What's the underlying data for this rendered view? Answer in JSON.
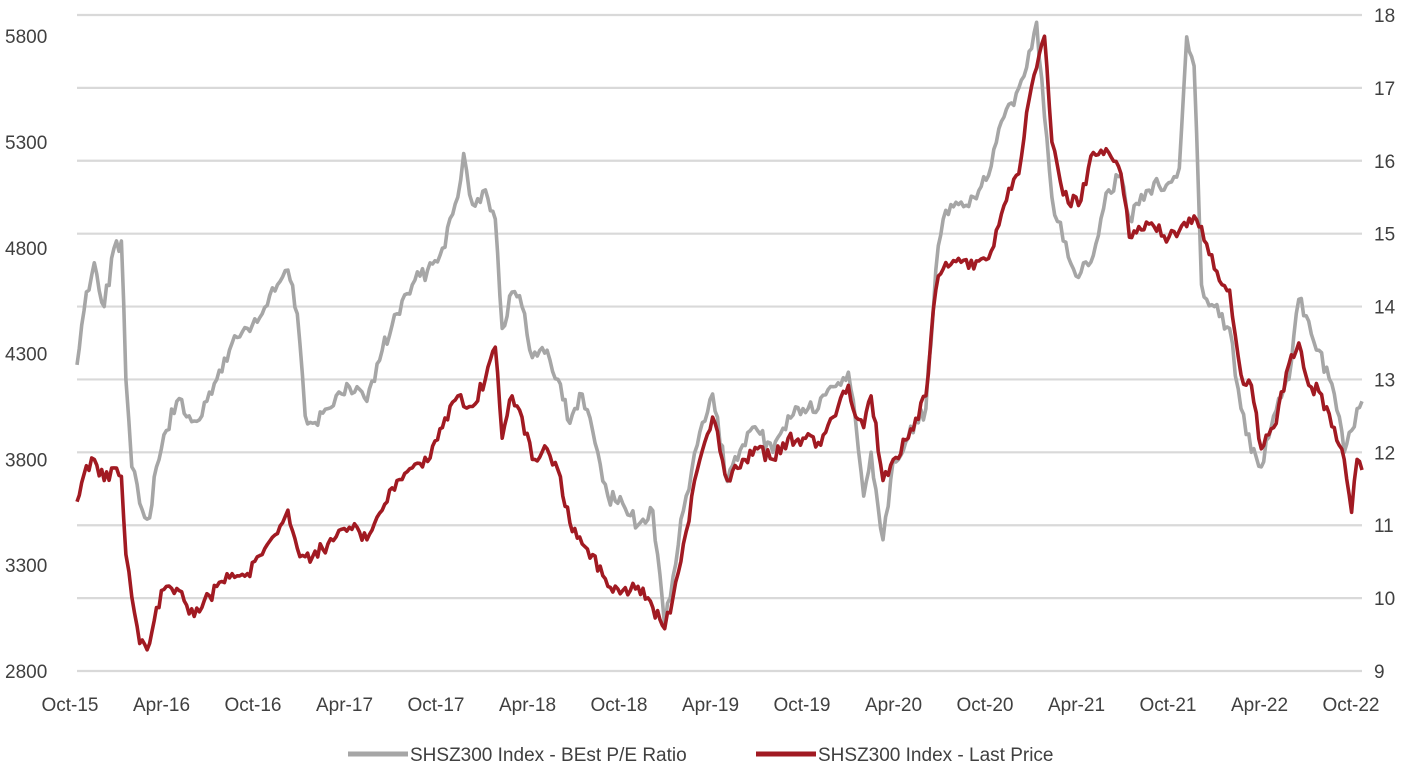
{
  "chart_data": {
    "type": "line",
    "title": "",
    "xlabel": "",
    "ylabel": "",
    "x_ticks": [
      "Oct-15",
      "Apr-16",
      "Oct-16",
      "Apr-17",
      "Oct-17",
      "Apr-18",
      "Oct-18",
      "Apr-19",
      "Oct-19",
      "Apr-20",
      "Oct-20",
      "Apr-21",
      "Oct-21",
      "Apr-22",
      "Oct-22"
    ],
    "x_range": [
      "2015-10-01",
      "2022-11-15"
    ],
    "y_left": {
      "ticks": [
        2800,
        3300,
        3800,
        4300,
        4800,
        5300,
        5800
      ],
      "range": [
        2800,
        5900
      ],
      "series": "SHSZ300 Index - Last Price"
    },
    "y_right": {
      "ticks": [
        9,
        10,
        11,
        12,
        13,
        14,
        15,
        16,
        17,
        18
      ],
      "range": [
        9,
        18
      ],
      "series": "SHSZ300 Index - BEst P/E Ratio"
    },
    "grid": true,
    "legend_position": "bottom",
    "colors": {
      "pe": "#a6a6a6",
      "price": "#a11a22",
      "grid": "#d9d9d9",
      "text": "#404040"
    },
    "series": [
      {
        "name": "SHSZ300 Index - BEst P/E Ratio",
        "axis": "right",
        "color": "#a6a6a6",
        "points": [
          [
            "2015-10-01",
            13.2
          ],
          [
            "2015-10-20",
            14.2
          ],
          [
            "2015-11-05",
            14.6
          ],
          [
            "2015-11-25",
            14.0
          ],
          [
            "2015-12-15",
            14.8
          ],
          [
            "2015-12-30",
            14.9
          ],
          [
            "2016-01-08",
            13.0
          ],
          [
            "2016-01-20",
            11.8
          ],
          [
            "2016-02-05",
            11.3
          ],
          [
            "2016-02-25",
            11.1
          ],
          [
            "2016-03-10",
            11.8
          ],
          [
            "2016-03-30",
            12.3
          ],
          [
            "2016-04-20",
            12.7
          ],
          [
            "2016-05-15",
            12.5
          ],
          [
            "2016-06-10",
            12.5
          ],
          [
            "2016-07-10",
            13.0
          ],
          [
            "2016-08-10",
            13.5
          ],
          [
            "2016-09-10",
            13.7
          ],
          [
            "2016-10-10",
            13.9
          ],
          [
            "2016-11-10",
            14.3
          ],
          [
            "2016-12-01",
            14.5
          ],
          [
            "2016-12-20",
            13.9
          ],
          [
            "2017-01-05",
            12.5
          ],
          [
            "2017-01-20",
            12.4
          ],
          [
            "2017-02-20",
            12.6
          ],
          [
            "2017-03-20",
            12.8
          ],
          [
            "2017-04-20",
            12.9
          ],
          [
            "2017-05-10",
            12.7
          ],
          [
            "2017-06-10",
            13.4
          ],
          [
            "2017-07-10",
            13.9
          ],
          [
            "2017-08-10",
            14.3
          ],
          [
            "2017-09-10",
            14.5
          ],
          [
            "2017-10-10",
            14.8
          ],
          [
            "2017-11-10",
            15.5
          ],
          [
            "2017-11-22",
            16.1
          ],
          [
            "2017-12-10",
            15.4
          ],
          [
            "2018-01-05",
            15.6
          ],
          [
            "2018-01-25",
            15.2
          ],
          [
            "2018-02-08",
            13.7
          ],
          [
            "2018-02-28",
            14.2
          ],
          [
            "2018-03-20",
            14.0
          ],
          [
            "2018-04-10",
            13.3
          ],
          [
            "2018-05-10",
            13.4
          ],
          [
            "2018-06-01",
            13.0
          ],
          [
            "2018-06-25",
            12.4
          ],
          [
            "2018-07-20",
            12.8
          ],
          [
            "2018-08-10",
            12.3
          ],
          [
            "2018-09-10",
            11.4
          ],
          [
            "2018-10-10",
            11.3
          ],
          [
            "2018-11-10",
            11.0
          ],
          [
            "2018-12-10",
            11.2
          ],
          [
            "2019-01-03",
            9.6
          ],
          [
            "2019-01-20",
            10.3
          ],
          [
            "2019-02-10",
            11.2
          ],
          [
            "2019-03-10",
            12.1
          ],
          [
            "2019-04-10",
            12.8
          ],
          [
            "2019-05-10",
            11.6
          ],
          [
            "2019-06-10",
            12.1
          ],
          [
            "2019-07-10",
            12.3
          ],
          [
            "2019-08-10",
            12.0
          ],
          [
            "2019-09-10",
            12.5
          ],
          [
            "2019-10-10",
            12.6
          ],
          [
            "2019-11-10",
            12.6
          ],
          [
            "2019-12-10",
            12.9
          ],
          [
            "2020-01-10",
            13.1
          ],
          [
            "2020-01-25",
            12.4
          ],
          [
            "2020-02-10",
            11.4
          ],
          [
            "2020-02-25",
            12.0
          ],
          [
            "2020-03-20",
            10.8
          ],
          [
            "2020-04-10",
            11.9
          ],
          [
            "2020-05-10",
            12.2
          ],
          [
            "2020-06-15",
            12.6
          ],
          [
            "2020-07-05",
            14.5
          ],
          [
            "2020-07-20",
            15.2
          ],
          [
            "2020-08-20",
            15.4
          ],
          [
            "2020-09-20",
            15.5
          ],
          [
            "2020-10-20",
            15.8
          ],
          [
            "2020-11-20",
            16.6
          ],
          [
            "2020-12-20",
            17.0
          ],
          [
            "2021-01-10",
            17.5
          ],
          [
            "2021-01-25",
            17.9
          ],
          [
            "2021-02-10",
            16.6
          ],
          [
            "2021-02-25",
            15.5
          ],
          [
            "2021-03-20",
            14.9
          ],
          [
            "2021-04-20",
            14.4
          ],
          [
            "2021-05-20",
            14.7
          ],
          [
            "2021-06-20",
            15.6
          ],
          [
            "2021-07-15",
            15.8
          ],
          [
            "2021-08-01",
            15.2
          ],
          [
            "2021-08-20",
            15.4
          ],
          [
            "2021-09-20",
            15.7
          ],
          [
            "2021-10-20",
            15.7
          ],
          [
            "2021-11-10",
            15.9
          ],
          [
            "2021-11-25",
            17.7
          ],
          [
            "2021-12-10",
            17.3
          ],
          [
            "2021-12-25",
            14.3
          ],
          [
            "2022-01-20",
            14.0
          ],
          [
            "2022-02-20",
            13.7
          ],
          [
            "2022-03-15",
            12.6
          ],
          [
            "2022-04-05",
            12.0
          ],
          [
            "2022-04-25",
            11.8
          ],
          [
            "2022-05-20",
            12.5
          ],
          [
            "2022-06-20",
            13.0
          ],
          [
            "2022-07-10",
            14.1
          ],
          [
            "2022-07-30",
            13.8
          ],
          [
            "2022-08-20",
            13.4
          ],
          [
            "2022-09-20",
            12.8
          ],
          [
            "2022-10-10",
            12.0
          ],
          [
            "2022-10-25",
            12.3
          ],
          [
            "2022-11-05",
            12.6
          ],
          [
            "2022-11-15",
            12.7
          ]
        ]
      },
      {
        "name": "SHSZ300 Index - Last Price",
        "axis": "left",
        "color": "#a11a22",
        "points": [
          [
            "2015-10-01",
            3600
          ],
          [
            "2015-10-20",
            3770
          ],
          [
            "2015-11-05",
            3800
          ],
          [
            "2015-11-25",
            3700
          ],
          [
            "2015-12-15",
            3760
          ],
          [
            "2015-12-30",
            3720
          ],
          [
            "2016-01-08",
            3350
          ],
          [
            "2016-01-20",
            3150
          ],
          [
            "2016-02-05",
            2930
          ],
          [
            "2016-02-25",
            2930
          ],
          [
            "2016-03-10",
            3100
          ],
          [
            "2016-03-30",
            3200
          ],
          [
            "2016-04-20",
            3190
          ],
          [
            "2016-05-15",
            3070
          ],
          [
            "2016-06-10",
            3100
          ],
          [
            "2016-07-10",
            3200
          ],
          [
            "2016-08-10",
            3260
          ],
          [
            "2016-09-10",
            3260
          ],
          [
            "2016-10-10",
            3350
          ],
          [
            "2016-11-10",
            3450
          ],
          [
            "2016-12-01",
            3560
          ],
          [
            "2016-12-20",
            3380
          ],
          [
            "2017-01-05",
            3340
          ],
          [
            "2017-01-20",
            3340
          ],
          [
            "2017-02-20",
            3400
          ],
          [
            "2017-03-20",
            3470
          ],
          [
            "2017-04-20",
            3480
          ],
          [
            "2017-05-10",
            3420
          ],
          [
            "2017-06-10",
            3560
          ],
          [
            "2017-07-10",
            3700
          ],
          [
            "2017-08-10",
            3760
          ],
          [
            "2017-09-10",
            3790
          ],
          [
            "2017-10-10",
            3950
          ],
          [
            "2017-11-10",
            4100
          ],
          [
            "2017-11-22",
            4050
          ],
          [
            "2017-12-10",
            4050
          ],
          [
            "2018-01-05",
            4180
          ],
          [
            "2018-01-25",
            4330
          ],
          [
            "2018-02-08",
            3900
          ],
          [
            "2018-02-28",
            4100
          ],
          [
            "2018-03-20",
            4000
          ],
          [
            "2018-04-10",
            3800
          ],
          [
            "2018-05-10",
            3850
          ],
          [
            "2018-06-01",
            3750
          ],
          [
            "2018-06-25",
            3500
          ],
          [
            "2018-07-20",
            3400
          ],
          [
            "2018-08-10",
            3350
          ],
          [
            "2018-09-10",
            3200
          ],
          [
            "2018-10-10",
            3180
          ],
          [
            "2018-11-10",
            3200
          ],
          [
            "2018-12-10",
            3100
          ],
          [
            "2019-01-03",
            3000
          ],
          [
            "2019-01-20",
            3150
          ],
          [
            "2019-02-10",
            3400
          ],
          [
            "2019-03-10",
            3750
          ],
          [
            "2019-04-10",
            4000
          ],
          [
            "2019-05-10",
            3700
          ],
          [
            "2019-06-10",
            3800
          ],
          [
            "2019-07-10",
            3850
          ],
          [
            "2019-08-10",
            3800
          ],
          [
            "2019-09-10",
            3900
          ],
          [
            "2019-10-10",
            3900
          ],
          [
            "2019-11-10",
            3880
          ],
          [
            "2019-12-10",
            4000
          ],
          [
            "2020-01-10",
            4150
          ],
          [
            "2020-01-25",
            4000
          ],
          [
            "2020-02-10",
            3950
          ],
          [
            "2020-02-25",
            4100
          ],
          [
            "2020-03-20",
            3700
          ],
          [
            "2020-04-10",
            3800
          ],
          [
            "2020-05-10",
            3900
          ],
          [
            "2020-06-15",
            4100
          ],
          [
            "2020-07-05",
            4600
          ],
          [
            "2020-07-20",
            4700
          ],
          [
            "2020-08-20",
            4750
          ],
          [
            "2020-09-20",
            4700
          ],
          [
            "2020-10-20",
            4750
          ],
          [
            "2020-11-20",
            5000
          ],
          [
            "2020-12-20",
            5150
          ],
          [
            "2021-01-10",
            5500
          ],
          [
            "2021-01-25",
            5650
          ],
          [
            "2021-02-10",
            5800
          ],
          [
            "2021-02-25",
            5300
          ],
          [
            "2021-03-20",
            5050
          ],
          [
            "2021-04-20",
            5000
          ],
          [
            "2021-05-20",
            5250
          ],
          [
            "2021-06-20",
            5250
          ],
          [
            "2021-07-15",
            5150
          ],
          [
            "2021-08-01",
            4850
          ],
          [
            "2021-08-20",
            4900
          ],
          [
            "2021-09-20",
            4900
          ],
          [
            "2021-10-20",
            4850
          ],
          [
            "2021-11-10",
            4880
          ],
          [
            "2021-11-25",
            4900
          ],
          [
            "2021-12-10",
            4950
          ],
          [
            "2021-12-25",
            4900
          ],
          [
            "2022-01-20",
            4700
          ],
          [
            "2022-02-20",
            4600
          ],
          [
            "2022-03-15",
            4200
          ],
          [
            "2022-04-05",
            4150
          ],
          [
            "2022-04-25",
            3850
          ],
          [
            "2022-05-20",
            3950
          ],
          [
            "2022-06-20",
            4250
          ],
          [
            "2022-07-10",
            4350
          ],
          [
            "2022-07-30",
            4150
          ],
          [
            "2022-08-20",
            4120
          ],
          [
            "2022-09-20",
            3950
          ],
          [
            "2022-10-10",
            3800
          ],
          [
            "2022-10-25",
            3550
          ],
          [
            "2022-11-05",
            3800
          ],
          [
            "2022-11-15",
            3750
          ]
        ]
      }
    ]
  }
}
